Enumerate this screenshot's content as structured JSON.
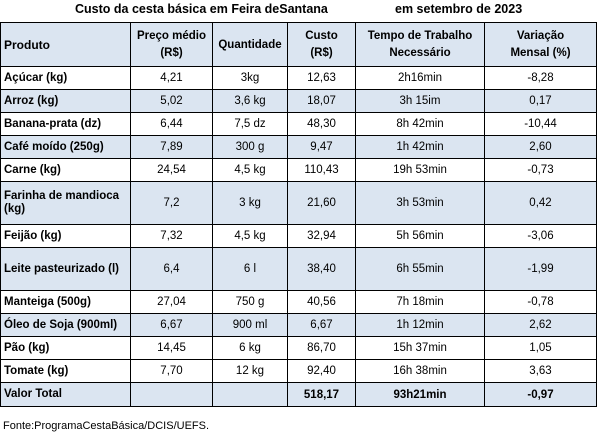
{
  "title": {
    "left": "Custo da cesta básica em Feira deSantana",
    "right": "em setembro de 2023"
  },
  "headers": {
    "produto": "Produto",
    "preco_line1": "Preço médio",
    "preco_line2": "(R$)",
    "quantidade": "Quantidade",
    "custo_line1": "Custo",
    "custo_line2": "(R$)",
    "tempo_line1": "Tempo de Trabalho",
    "tempo_line2": "Necessário",
    "variacao_line1": "Variação",
    "variacao_line2": "Mensal (%)"
  },
  "rows": [
    {
      "produto": "Açúcar (kg)",
      "preco": "4,21",
      "quantidade": "3kg",
      "custo": "12,63",
      "tempo": "2h16min",
      "variacao": "-8,28"
    },
    {
      "produto": "Arroz (kg)",
      "preco": "5,02",
      "quantidade": "3,6 kg",
      "custo": "18,07",
      "tempo": "3h 15im",
      "variacao": "0,17"
    },
    {
      "produto": "Banana-prata (dz)",
      "preco": "6,44",
      "quantidade": "7,5 dz",
      "custo": "48,30",
      "tempo": "8h 42min",
      "variacao": "-10,44"
    },
    {
      "produto": "Café moído (250g)",
      "preco": "7,89",
      "quantidade": "300 g",
      "custo": "9,47",
      "tempo": "1h 42min",
      "variacao": "2,60"
    },
    {
      "produto": "Carne (kg)",
      "preco": "24,54",
      "quantidade": "4,5 kg",
      "custo": "110,43",
      "tempo": "19h 53min",
      "variacao": "-0,73"
    },
    {
      "produto": "Farinha de mandioca (kg)",
      "preco": "7,2",
      "quantidade": "3 kg",
      "custo": "21,60",
      "tempo": "3h 53min",
      "variacao": "0,42"
    },
    {
      "produto": "Feijão (kg)",
      "preco": "7,32",
      "quantidade": "4,5 kg",
      "custo": "32,94",
      "tempo": "5h 56min",
      "variacao": "-3,06"
    },
    {
      "produto": "Leite pasteurizado (l)",
      "preco": "6,4",
      "quantidade": "6 l",
      "custo": "38,40",
      "tempo": "6h 55min",
      "variacao": "-1,99"
    },
    {
      "produto": "Manteiga (500g)",
      "preco": "27,04",
      "quantidade": "750 g",
      "custo": "40,56",
      "tempo": "7h 18min",
      "variacao": "-0,78"
    },
    {
      "produto": "Óleo de Soja (900ml)",
      "preco": "6,67",
      "quantidade": "900 ml",
      "custo": "6,67",
      "tempo": "1h 12min",
      "variacao": "2,62"
    },
    {
      "produto": "Pão (kg)",
      "preco": "14,45",
      "quantidade": "6 kg",
      "custo": "86,70",
      "tempo": "15h 37min",
      "variacao": "1,05"
    },
    {
      "produto": "Tomate (kg)",
      "preco": "7,70",
      "quantidade": "12 kg",
      "custo": "92,40",
      "tempo": "16h 38min",
      "variacao": "3,63"
    }
  ],
  "total": {
    "label": "Valor Total",
    "custo": "518,17",
    "tempo": "93h21min",
    "variacao": "-0,97"
  },
  "source": "Fonte:ProgramaCestaBásica/DCIS/UEFS."
}
